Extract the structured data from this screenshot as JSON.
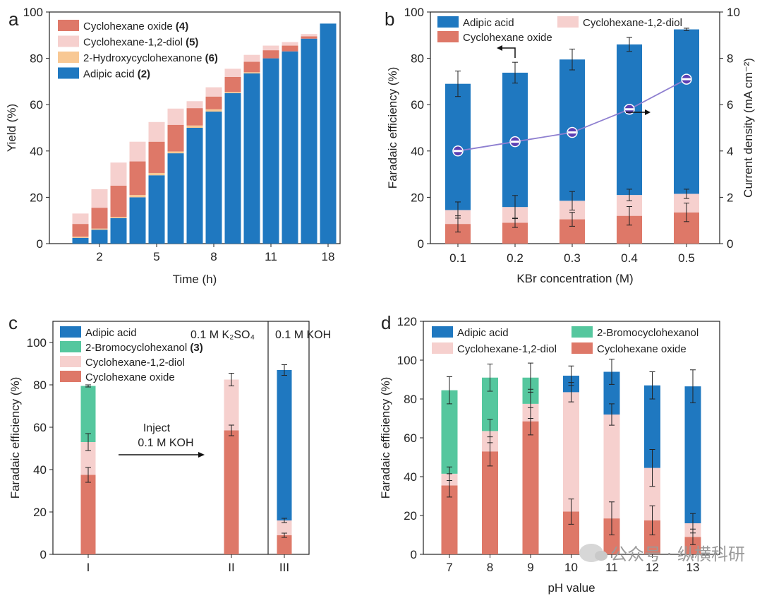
{
  "colors": {
    "adipic": "#1f78c0",
    "diol": "#f6d0ce",
    "oxide": "#de7868",
    "hydroxy": "#f8c894",
    "bromo": "#55c79e",
    "line": "#8e7fd0",
    "marker": "#5b3fb3"
  },
  "watermark": {
    "text": "公众号 · 纵横科研",
    "icon": "wechat-icon"
  },
  "chart_data": [
    {
      "panel": "a",
      "type": "bar",
      "stacked": true,
      "xlabel": "Time (h)",
      "ylabel": "Yield (%)",
      "ylim": [
        0,
        100
      ],
      "yticks": [
        0,
        20,
        40,
        60,
        80,
        100
      ],
      "xtick_labels": [
        "2",
        "5",
        "8",
        "11",
        "18"
      ],
      "xtick_index": [
        1,
        4,
        7,
        10,
        13
      ],
      "categories_count": 14,
      "legend": [
        "Cyclohexane oxide (4)",
        "Cyclohexane-1,2-diol (5)",
        "2-Hydroxycyclohexanone (6)",
        "Adipic acid (2)"
      ],
      "series": [
        {
          "name": "Adipic acid (2)",
          "color_key": "adipic",
          "values": [
            2.5,
            6,
            11,
            20,
            29.5,
            39,
            50,
            57,
            65,
            73.5,
            80,
            83,
            88.5,
            95
          ]
        },
        {
          "name": "2-Hydroxycyclohexanone (6)",
          "color_key": "hydroxy",
          "values": [
            0.5,
            0.5,
            0.5,
            1,
            1,
            0.8,
            1,
            1,
            0.5,
            0.5,
            0,
            0,
            0,
            0
          ]
        },
        {
          "name": "Cyclohexane oxide (4)",
          "color_key": "oxide",
          "values": [
            5.5,
            9,
            13.5,
            14.5,
            13.5,
            11.5,
            7.5,
            5.5,
            6.5,
            4.5,
            3.5,
            2.5,
            1,
            0
          ]
        },
        {
          "name": "Cyclohexane-1,2-diol (5)",
          "color_key": "diol",
          "values": [
            4.5,
            8,
            10,
            8.5,
            8.5,
            7,
            3,
            4,
            3.5,
            3,
            2,
            1.5,
            1,
            0
          ]
        }
      ]
    },
    {
      "panel": "b",
      "type": "bar",
      "stacked": true,
      "xlabel": "KBr concentration (M)",
      "ylabel": "Faradaic efficiency (%)",
      "ylabel_right": "Current density (mA cm⁻²)",
      "ylim": [
        0,
        100
      ],
      "ylim_right": [
        0,
        10
      ],
      "yticks": [
        0,
        20,
        40,
        60,
        80,
        100
      ],
      "yticks_right": [
        0,
        2,
        4,
        6,
        8,
        10
      ],
      "categories": [
        "0.1",
        "0.2",
        "0.3",
        "0.4",
        "0.5"
      ],
      "legend": [
        "Adipic acid",
        "Cyclohexane-1,2-diol",
        "Cyclohexane oxide"
      ],
      "series": [
        {
          "name": "Cyclohexane oxide",
          "color_key": "oxide",
          "values": [
            8.5,
            9,
            10.5,
            12,
            13.5
          ],
          "err": [
            3.5,
            2,
            3,
            4,
            4
          ]
        },
        {
          "name": "Cyclohexane-1,2-diol",
          "color_key": "diol",
          "values": [
            6,
            6.8,
            8,
            9,
            8
          ],
          "err": [
            3.5,
            5,
            4,
            2.5,
            2
          ]
        },
        {
          "name": "Adipic acid",
          "color_key": "adipic",
          "values": [
            54.5,
            58,
            61,
            65,
            71
          ],
          "err": [
            5.5,
            4.5,
            4.5,
            3,
            0.5
          ]
        }
      ],
      "line": {
        "values": [
          4.0,
          4.4,
          4.8,
          5.8,
          7.1
        ],
        "axis": "right"
      }
    },
    {
      "panel": "c",
      "type": "bar",
      "stacked": true,
      "ylabel": "Faradaic efficiency (%)",
      "ylim": [
        0,
        110
      ],
      "yticks": [
        0,
        20,
        40,
        60,
        80,
        100
      ],
      "categories": [
        "I",
        "II",
        "III"
      ],
      "legend": [
        "Adipic acid",
        "2-Bromocyclohexanol (3)",
        "Cyclohexane-1,2-diol",
        "Cyclohexane oxide"
      ],
      "region_labels": [
        "0.1 M K₂SO₄",
        "0.1 M KOH"
      ],
      "annotation": [
        "Inject",
        "0.1 M KOH"
      ],
      "series": [
        {
          "name": "Cyclohexane oxide",
          "color_key": "oxide",
          "values": [
            37.5,
            58.5,
            9
          ],
          "err": [
            3.5,
            2.5,
            1
          ]
        },
        {
          "name": "Cyclohexane-1,2-diol",
          "color_key": "diol",
          "values": [
            15.5,
            24,
            7
          ],
          "err": [
            4,
            3,
            1
          ]
        },
        {
          "name": "2-Bromocyclohexanol (3)",
          "color_key": "bromo",
          "values": [
            26.5,
            0,
            0
          ],
          "err": [
            0.5,
            0,
            0
          ]
        },
        {
          "name": "Adipic acid",
          "color_key": "adipic",
          "values": [
            0,
            0,
            71
          ],
          "err": [
            0,
            0,
            2.5
          ]
        }
      ]
    },
    {
      "panel": "d",
      "type": "bar",
      "stacked": true,
      "xlabel": "pH value",
      "ylabel": "Faradaic efficiency (%)",
      "ylim": [
        0,
        120
      ],
      "yticks": [
        0,
        20,
        40,
        60,
        80,
        100,
        120
      ],
      "categories": [
        "7",
        "8",
        "9",
        "10",
        "11",
        "12",
        "13"
      ],
      "legend": [
        "Adipic acid",
        "2-Bromocyclohexanol",
        "Cyclohexane-1,2-diol",
        "Cyclohexane oxide"
      ],
      "series": [
        {
          "name": "Cyclohexane oxide",
          "color_key": "oxide",
          "values": [
            35.5,
            53,
            68.5,
            22,
            18.5,
            17.5,
            9
          ],
          "err": [
            6,
            7.5,
            7,
            6.5,
            8.5,
            7.5,
            4
          ]
        },
        {
          "name": "Cyclohexane-1,2-diol",
          "color_key": "diol",
          "values": [
            6,
            10.5,
            9,
            61.5,
            53.5,
            27,
            7
          ],
          "err": [
            3.5,
            6,
            7.5,
            5,
            5.5,
            9.5,
            5
          ]
        },
        {
          "name": "2-Bromocyclohexanol",
          "color_key": "bromo",
          "values": [
            43,
            27.5,
            13.5,
            0,
            0,
            0,
            0
          ],
          "err": [
            7,
            7,
            7.5,
            0,
            0,
            0,
            0
          ]
        },
        {
          "name": "Adipic acid",
          "color_key": "adipic",
          "values": [
            0,
            0,
            0,
            8.5,
            22,
            42.5,
            70.5
          ],
          "err": [
            0,
            0,
            0,
            5,
            6.5,
            7,
            8.5
          ]
        }
      ]
    }
  ]
}
